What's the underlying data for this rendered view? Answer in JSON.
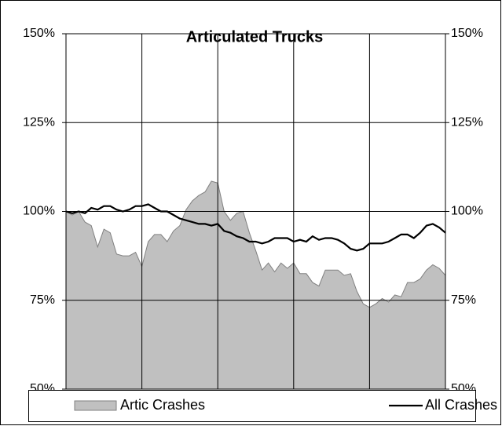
{
  "chart_data": {
    "type": "line",
    "title": "Articulated Trucks",
    "ylim": [
      50,
      150
    ],
    "yticks": [
      {
        "value": 50,
        "label": "50%"
      },
      {
        "value": 75,
        "label": "75%"
      },
      {
        "value": 100,
        "label": "100%"
      },
      {
        "value": 125,
        "label": "125%"
      },
      {
        "value": 150,
        "label": "150%"
      }
    ],
    "y2lim": [
      50,
      150
    ],
    "y2ticks": [
      {
        "value": 50,
        "label": "50%"
      },
      {
        "value": 75,
        "label": "75%"
      },
      {
        "value": 100,
        "label": "100%"
      },
      {
        "value": 125,
        "label": "125%"
      },
      {
        "value": 150,
        "label": "150%"
      }
    ],
    "grid": true,
    "legend": "bottom",
    "series": [
      {
        "name": "Artic Crashes",
        "type": "area",
        "color": "#c0c0c0",
        "values": [
          100,
          99,
          100,
          97,
          96,
          90,
          95,
          94,
          88,
          87.5,
          87.5,
          88.5,
          84.5,
          91.5,
          93.5,
          93.5,
          91.5,
          94.5,
          96,
          100.5,
          103,
          104.5,
          105.5,
          108.5,
          108,
          100,
          97.5,
          99.5,
          100,
          94,
          89,
          83.5,
          85.5,
          83,
          85.5,
          84,
          85.5,
          82.5,
          82.5,
          80,
          79,
          83.5,
          83.5,
          83.5,
          82,
          82.5,
          77.5,
          74,
          73,
          74,
          75.5,
          74.5,
          76.5,
          76,
          80,
          80,
          81,
          83.5,
          85,
          84,
          82
        ]
      },
      {
        "name": "All Crashes",
        "type": "line",
        "color": "#000000",
        "values": [
          100,
          99.5,
          100,
          99.5,
          101,
          100.5,
          101.5,
          101.5,
          100.5,
          100,
          100.5,
          101.5,
          101.5,
          102,
          101,
          100,
          100,
          99,
          98,
          97.5,
          97,
          96.5,
          96.5,
          96,
          96.5,
          94.5,
          94,
          93,
          92.5,
          91.5,
          91.5,
          91,
          91.5,
          92.5,
          92.5,
          92.5,
          91.5,
          92,
          91.5,
          93,
          92,
          92.5,
          92.5,
          92,
          91,
          89.5,
          89,
          89.5,
          91,
          91,
          91,
          91.5,
          92.5,
          93.5,
          93.5,
          92.5,
          94,
          96,
          96.5,
          95.5,
          94
        ]
      }
    ]
  }
}
